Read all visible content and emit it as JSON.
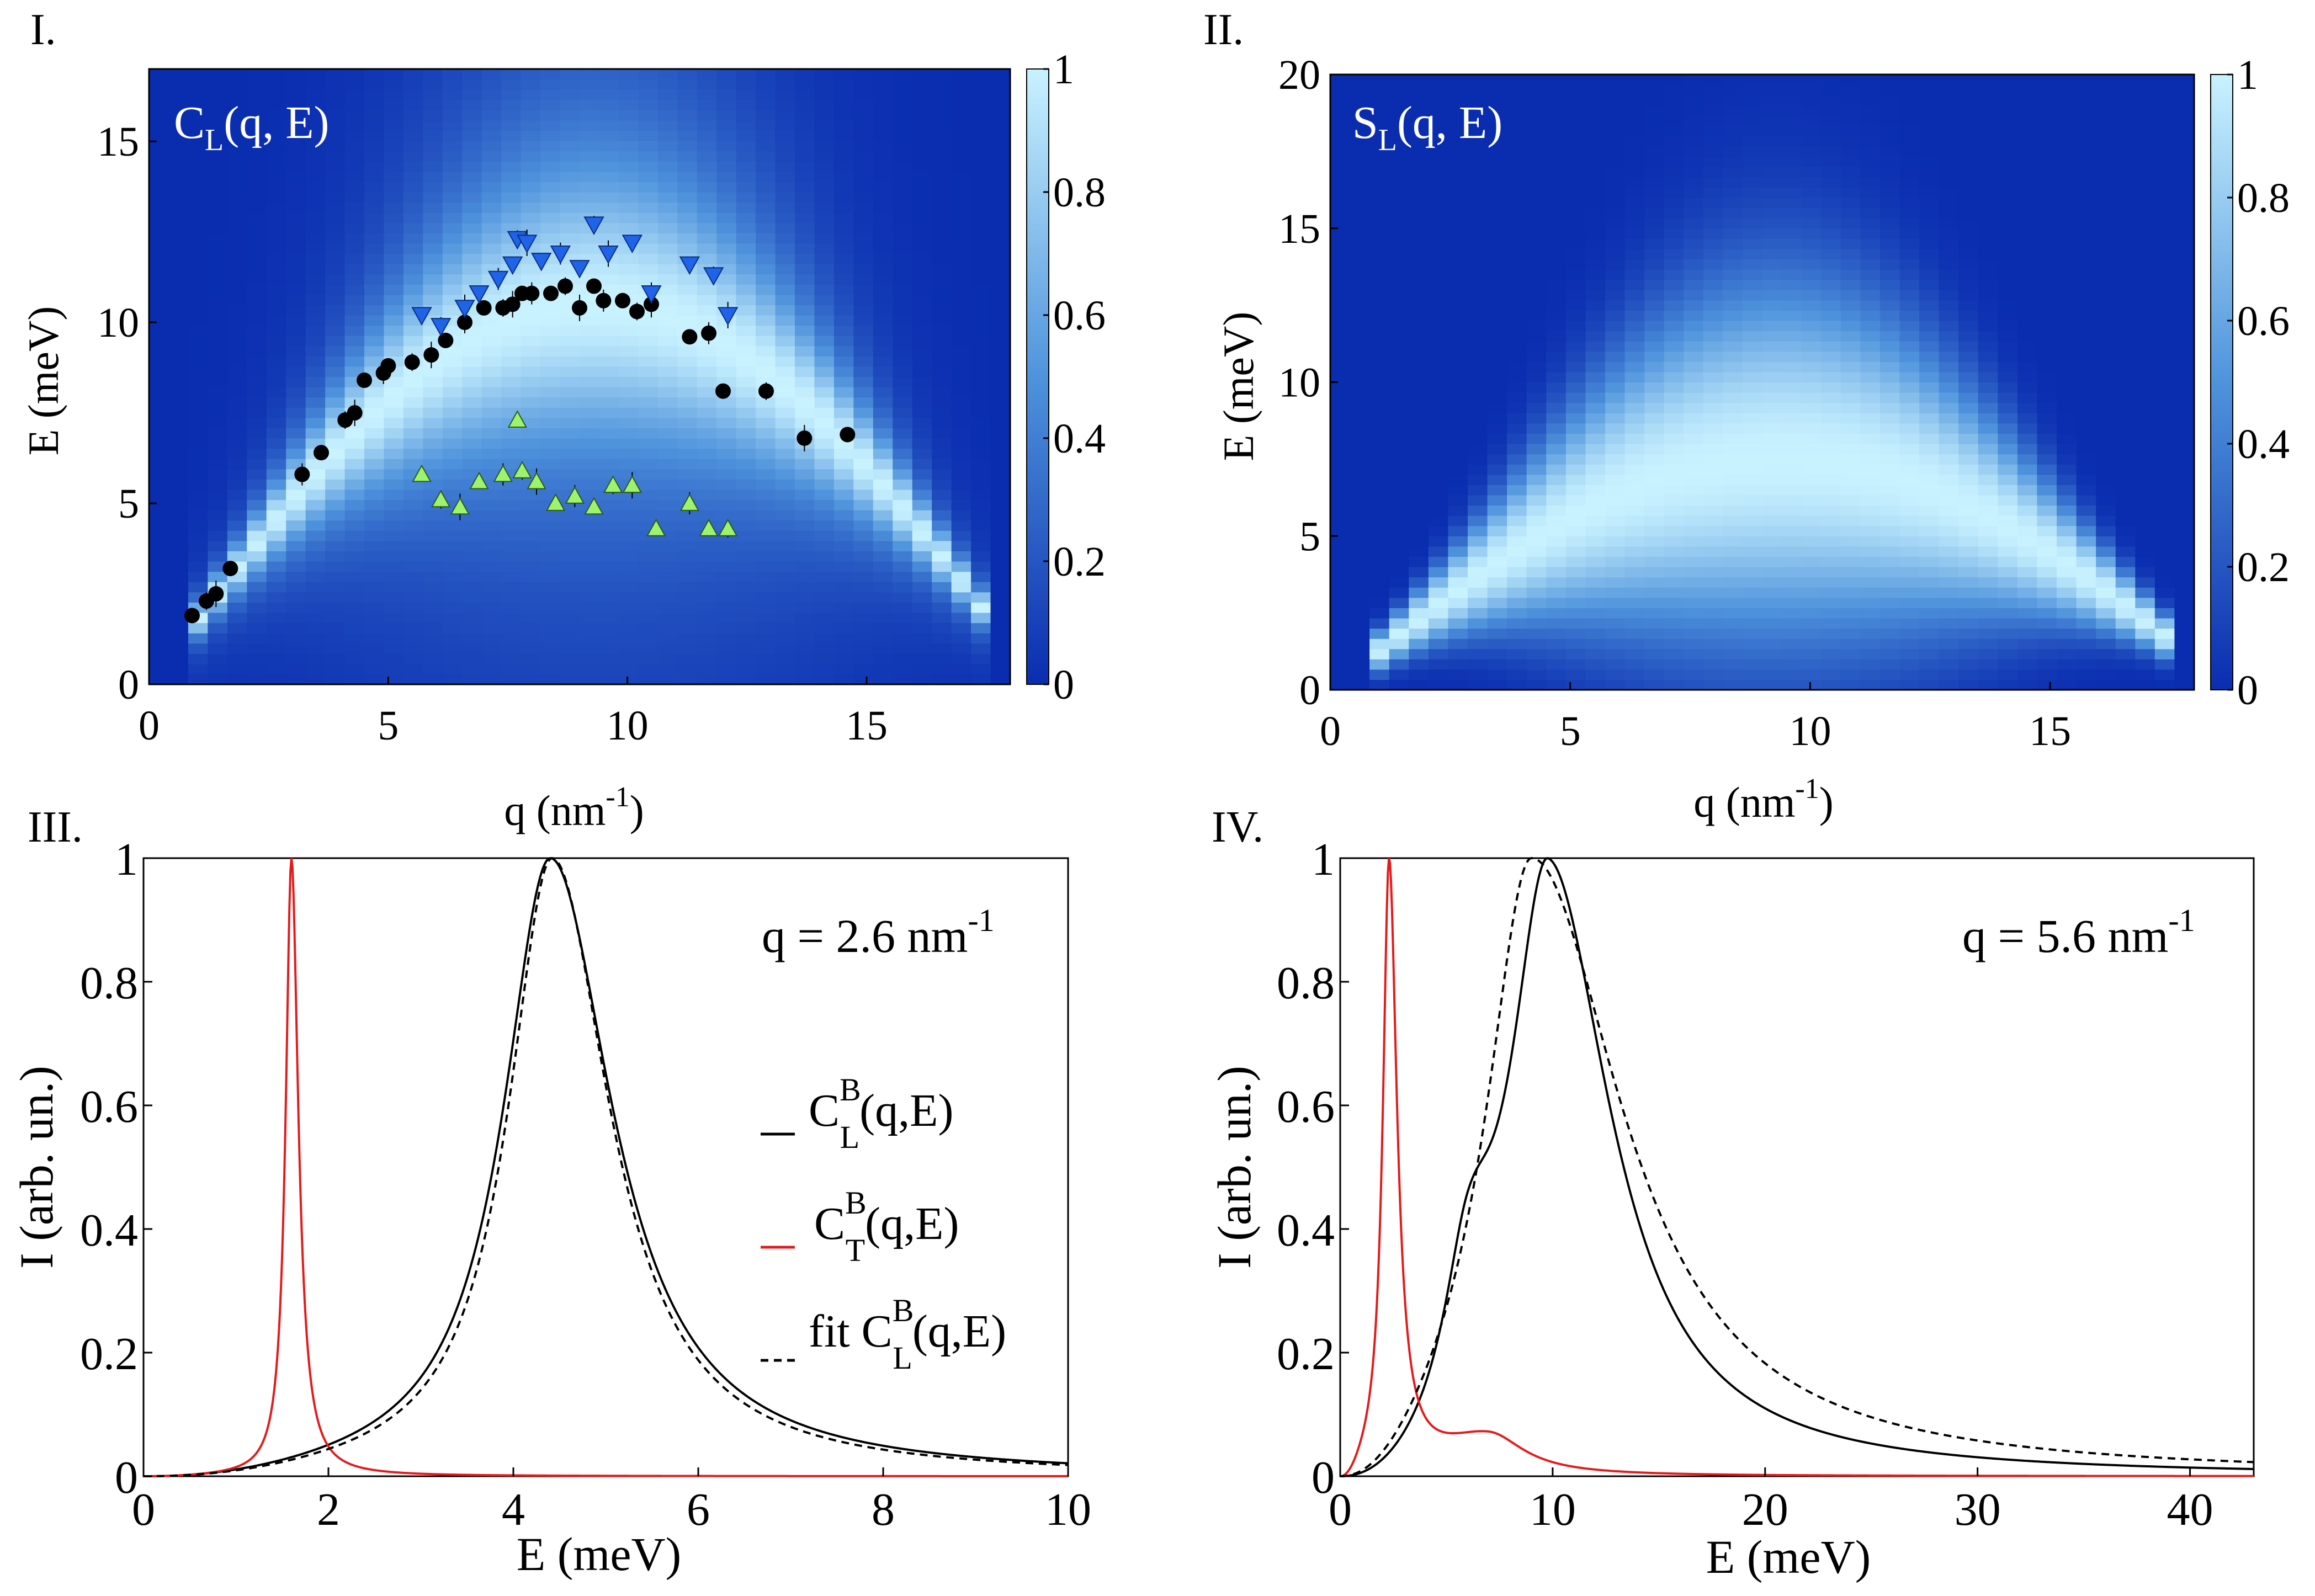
{
  "chart_data": [
    {
      "panel": "I.",
      "type": "heatmap",
      "annotation": {
        "main": "C",
        "sub": "L",
        "rest": "(q, E)"
      },
      "xlabel": {
        "main": "q (nm",
        "sup": "-1",
        "end": ")"
      },
      "ylabel": "E (meV)",
      "xlim": [
        0,
        18
      ],
      "ylim": [
        0,
        17
      ],
      "xticks": [
        "0",
        "5",
        "10",
        "15"
      ],
      "yticks": [
        "0",
        "5",
        "10",
        "15"
      ],
      "colorbar": {
        "ticks": [
          "0",
          "0.2",
          "0.4",
          "0.6",
          "0.8",
          "1"
        ],
        "range": [
          0,
          1
        ]
      },
      "colors": {
        "low": "#0a2db0",
        "high": "#c9f2ff"
      },
      "ridge": {
        "peak_q": 9,
        "peak_E": 10.5,
        "qmax": 17.6
      },
      "series": [
        {
          "marker": "circle",
          "color": "#000000",
          "points": [
            [
              0.9,
              1.9
            ],
            [
              1.2,
              2.3
            ],
            [
              1.4,
              2.5
            ],
            [
              1.7,
              3.2
            ],
            [
              3.2,
              5.8
            ],
            [
              3.6,
              6.4
            ],
            [
              4.1,
              7.3
            ],
            [
              4.3,
              7.5
            ],
            [
              4.5,
              8.4
            ],
            [
              4.9,
              8.6
            ],
            [
              5.0,
              8.8
            ],
            [
              5.5,
              8.9
            ],
            [
              5.9,
              9.1
            ],
            [
              6.2,
              9.5
            ],
            [
              6.6,
              10.0
            ],
            [
              7.0,
              10.4
            ],
            [
              7.4,
              10.4
            ],
            [
              7.6,
              10.5
            ],
            [
              7.8,
              10.8
            ],
            [
              8.0,
              10.8
            ],
            [
              8.4,
              10.8
            ],
            [
              8.7,
              11.0
            ],
            [
              9.0,
              10.4
            ],
            [
              9.3,
              11.0
            ],
            [
              9.5,
              10.6
            ],
            [
              9.9,
              10.6
            ],
            [
              10.2,
              10.3
            ],
            [
              10.5,
              10.5
            ],
            [
              11.3,
              9.6
            ],
            [
              11.7,
              9.7
            ],
            [
              12.0,
              8.1
            ],
            [
              12.9,
              8.1
            ],
            [
              13.7,
              6.8
            ],
            [
              14.6,
              6.9
            ]
          ]
        },
        {
          "marker": "triangle-down",
          "color": "#1f63e8",
          "points": [
            [
              5.7,
              10.2
            ],
            [
              6.1,
              9.9
            ],
            [
              6.6,
              10.4
            ],
            [
              6.9,
              10.8
            ],
            [
              7.3,
              11.2
            ],
            [
              7.6,
              11.6
            ],
            [
              7.7,
              12.3
            ],
            [
              7.9,
              12.2
            ],
            [
              8.2,
              11.7
            ],
            [
              8.6,
              11.9
            ],
            [
              9.0,
              11.5
            ],
            [
              9.3,
              12.7
            ],
            [
              9.6,
              11.9
            ],
            [
              10.1,
              12.2
            ],
            [
              10.5,
              10.8
            ],
            [
              11.3,
              11.6
            ],
            [
              11.8,
              11.3
            ],
            [
              12.1,
              10.2
            ]
          ]
        },
        {
          "marker": "triangle-up",
          "color": "#9ef36c",
          "points": [
            [
              5.7,
              5.8
            ],
            [
              6.1,
              5.1
            ],
            [
              6.5,
              4.9
            ],
            [
              6.9,
              5.6
            ],
            [
              7.4,
              5.8
            ],
            [
              7.7,
              7.3
            ],
            [
              7.8,
              5.9
            ],
            [
              8.1,
              5.6
            ],
            [
              8.5,
              5.0
            ],
            [
              8.9,
              5.2
            ],
            [
              9.3,
              4.9
            ],
            [
              9.7,
              5.5
            ],
            [
              10.1,
              5.5
            ],
            [
              10.6,
              4.3
            ],
            [
              11.3,
              5.0
            ],
            [
              11.7,
              4.3
            ],
            [
              12.1,
              4.3
            ]
          ]
        }
      ]
    },
    {
      "panel": "II.",
      "type": "heatmap",
      "annotation": {
        "main": "S",
        "sub": "L",
        "rest": "(q, E)"
      },
      "xlabel": {
        "main": "q (nm",
        "sup": "-1",
        "end": ")"
      },
      "ylabel": "E (meV)",
      "xlim": [
        0,
        18
      ],
      "ylim": [
        0,
        20
      ],
      "xticks": [
        "0",
        "5",
        "10",
        "15"
      ],
      "yticks": [
        "0",
        "5",
        "10",
        "15",
        "20"
      ],
      "colorbar": {
        "ticks": [
          "0",
          "0.2",
          "0.4",
          "0.6",
          "0.8",
          "1"
        ],
        "range": [
          0,
          1
        ]
      },
      "colors": {
        "low": "#0a2db0",
        "high": "#c9f2ff"
      },
      "ridge": {
        "peak_q": 9,
        "peak_E": 7.5,
        "qmax": 17.6
      }
    },
    {
      "panel": "III.",
      "type": "line",
      "annotation": {
        "main": "q = 2.6 nm",
        "sup": "-1"
      },
      "xlabel": "E (meV)",
      "ylabel": "I (arb. un.)",
      "xlim": [
        0,
        10
      ],
      "ylim": [
        0,
        1
      ],
      "xticks": [
        "0",
        "2",
        "4",
        "6",
        "8",
        "10"
      ],
      "yticks": [
        "0",
        "0.2",
        "0.4",
        "0.6",
        "0.8",
        "1"
      ],
      "legend_position": "middle-right",
      "series": [
        {
          "name": "C",
          "sup": "B",
          "sub": "L",
          "tail": "(q,E)",
          "prefix": "",
          "color": "#000000",
          "style": "solid",
          "peaks": [
            {
              "E0": 4.4,
              "wl": 0.62,
              "wr": 0.82,
              "a": 1.0
            }
          ]
        },
        {
          "name": "C",
          "sup": "B",
          "sub": "T",
          "tail": "(q,E)",
          "prefix": "",
          "color": "#e41a1c",
          "style": "solid",
          "peaks": [
            {
              "E0": 1.6,
              "wl": 0.075,
              "wr": 0.09,
              "a": 1.0
            }
          ],
          "floor": 0.012
        },
        {
          "name": "C",
          "sup": "B",
          "sub": "L",
          "tail": "(q,E)",
          "prefix": "fit ",
          "color": "#000000",
          "style": "dashed",
          "peaks": [
            {
              "E0": 4.42,
              "wl": 0.58,
              "wr": 0.76,
              "a": 1.0
            }
          ]
        }
      ]
    },
    {
      "panel": "IV.",
      "type": "line",
      "annotation": {
        "main": "q = 5.6 nm",
        "sup": "-1"
      },
      "xlabel": "E (meV)",
      "ylabel": "I (arb. un.)",
      "xlim": [
        0,
        43
      ],
      "ylim": [
        0,
        1
      ],
      "xticks": [
        "0",
        "10",
        "20",
        "30",
        "40"
      ],
      "yticks": [
        "0",
        "0.2",
        "0.4",
        "0.6",
        "0.8",
        "1"
      ],
      "series": [
        {
          "color": "#000000",
          "style": "solid",
          "peaks": [
            {
              "E0": 9.8,
              "wl": 2.2,
              "wr": 3.6,
              "a": 1.0
            },
            {
              "E0": 6.0,
              "wl": 1.4,
              "wr": 1.6,
              "a": 0.25
            }
          ]
        },
        {
          "color": "#e41a1c",
          "style": "solid",
          "peaks": [
            {
              "E0": 2.3,
              "wl": 0.35,
              "wr": 0.45,
              "a": 0.93
            },
            {
              "E0": 7.0,
              "wl": 3.0,
              "wr": 2.0,
              "a": 0.06
            }
          ]
        },
        {
          "color": "#000000",
          "style": "dashed",
          "peaks": [
            {
              "E0": 9.0,
              "wl": 2.6,
              "wr": 5.2,
              "a": 1.0
            }
          ]
        }
      ]
    }
  ]
}
